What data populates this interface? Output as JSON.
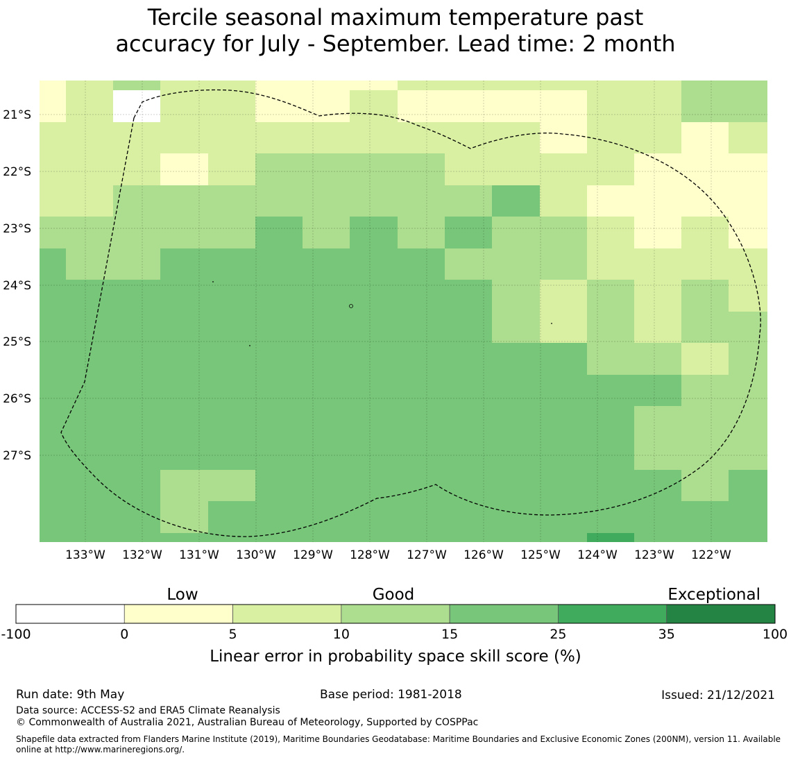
{
  "title_line1": "Tercile seasonal maximum temperature past",
  "title_line2": "accuracy for July - September. Lead time: 2 month",
  "map": {
    "lat_labels": [
      "21°S",
      "22°S",
      "23°S",
      "24°S",
      "25°S",
      "26°S",
      "27°S"
    ],
    "lon_labels": [
      "133°W",
      "132°W",
      "131°W",
      "130°W",
      "129°W",
      "128°W",
      "127°W",
      "126°W",
      "125°W",
      "124°W",
      "123°W",
      "122°W"
    ],
    "legend_levels": [
      {
        "range": "-100 to 0",
        "color": "#ffffff"
      },
      {
        "range": "0 to 5",
        "color": "#ffffcc"
      },
      {
        "range": "5 to 10",
        "color": "#d9f0a3"
      },
      {
        "range": "10 to 15",
        "color": "#addd8e"
      },
      {
        "range": "15 to 25",
        "color": "#78c679"
      },
      {
        "range": "25 to 35",
        "color": "#41ab5d"
      },
      {
        "range": "35 to 100",
        "color": "#238443"
      }
    ]
  },
  "colorbar": {
    "category_labels": [
      "Low",
      "Good",
      "Exceptional"
    ],
    "tick_labels": [
      "-100",
      "0",
      "5",
      "10",
      "15",
      "25",
      "35",
      "100"
    ],
    "label": "Linear error in probability space skill score (%)"
  },
  "footer": {
    "run_date": "Run date: 9th May",
    "base_period": "Base period: 1981-2018",
    "issued": "Issued: 21/12/2021",
    "data_source": "Data source: ACCESS-S2 and ERA5 Climate Reanalysis",
    "copyright": "© Commonwealth of Australia 2021, Australian Bureau of Meteorology, Supported by COSPPac",
    "shapefile_note": "Shapefile data extracted from Flanders Marine Institute (2019), Maritime Boundaries Geodatabase: Maritime Boundaries and Exclusive Economic Zones (200NM), version 11. Available online at http://www.marineregions.org/."
  }
}
